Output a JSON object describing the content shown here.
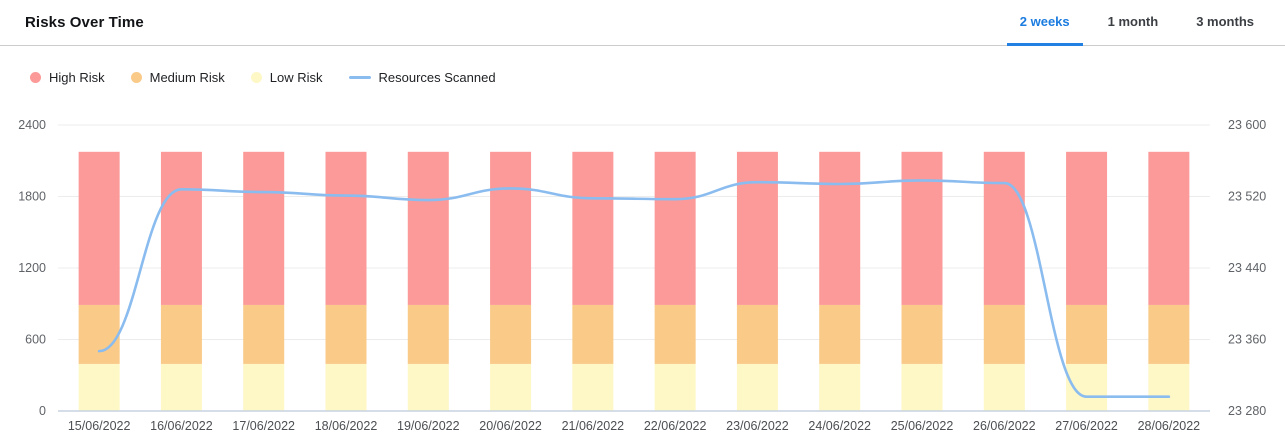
{
  "header": {
    "title": "Risks Over Time",
    "tabs": [
      {
        "label": "2 weeks",
        "active": true
      },
      {
        "label": "1 month",
        "active": false
      },
      {
        "label": "3 months",
        "active": false
      }
    ]
  },
  "legend": [
    {
      "label": "High Risk",
      "color": "#FB9A99",
      "marker": "circle"
    },
    {
      "label": "Medium Risk",
      "color": "#F9CA88",
      "marker": "circle"
    },
    {
      "label": "Low Risk",
      "color": "#FEF7C6",
      "marker": "circle"
    },
    {
      "label": "Resources Scanned",
      "color": "#8ABCEF",
      "marker": "line"
    }
  ],
  "colors": {
    "active_tab": "#1b7ce0",
    "grid": "#ececec",
    "x_axis_line": "#c7d3e0",
    "high_risk": "#FB9A99",
    "medium_risk": "#F9CA88",
    "low_risk": "#FEF7C6",
    "resources_line": "#8ABCEF"
  },
  "chart_data": {
    "type": "combo: stacked bar + line",
    "title": "Risks Over Time",
    "categories": [
      "15/06/2022",
      "16/06/2022",
      "17/06/2022",
      "18/06/2022",
      "19/06/2022",
      "20/06/2022",
      "21/06/2022",
      "22/06/2022",
      "23/06/2022",
      "24/06/2022",
      "25/06/2022",
      "26/06/2022",
      "27/06/2022",
      "28/06/2022"
    ],
    "series": [
      {
        "name": "Low Risk",
        "type": "bar",
        "stack": "risks",
        "axis": "left",
        "color": "#FEF7C6",
        "values": [
          395,
          395,
          395,
          395,
          395,
          395,
          395,
          395,
          395,
          395,
          395,
          395,
          395,
          395
        ]
      },
      {
        "name": "Medium Risk",
        "type": "bar",
        "stack": "risks",
        "axis": "left",
        "color": "#F9CA88",
        "values": [
          495,
          495,
          495,
          495,
          495,
          495,
          495,
          495,
          495,
          495,
          495,
          495,
          495,
          495
        ]
      },
      {
        "name": "High Risk",
        "type": "bar",
        "stack": "risks",
        "axis": "left",
        "color": "#FB9A99",
        "values": [
          1285,
          1285,
          1285,
          1285,
          1285,
          1285,
          1285,
          1285,
          1285,
          1285,
          1285,
          1285,
          1285,
          1285
        ]
      },
      {
        "name": "Resources Scanned",
        "type": "line",
        "axis": "right",
        "color": "#8ABCEF",
        "values": [
          23347,
          23528,
          23525,
          23521,
          23516,
          23529,
          23518,
          23517,
          23536,
          23534,
          23538,
          23535,
          23296,
          23296
        ]
      }
    ],
    "left_axis": {
      "min": 0,
      "max": 2400,
      "ticks": [
        0,
        600,
        1200,
        1800,
        2400
      ],
      "tick_labels": [
        "0",
        "600",
        "1200",
        "1800",
        "2400"
      ]
    },
    "right_axis": {
      "min": 23280,
      "max": 23600,
      "ticks": [
        23280,
        23360,
        23440,
        23520,
        23600
      ],
      "tick_labels": [
        "23 280",
        "23 360",
        "23 440",
        "23 520",
        "23 600"
      ]
    },
    "grid": true,
    "legend_position": "top-left"
  }
}
